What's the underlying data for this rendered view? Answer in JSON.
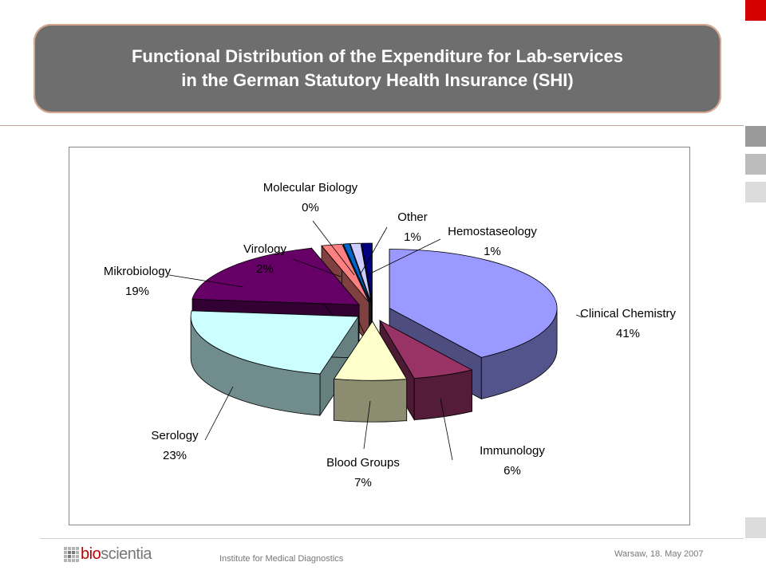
{
  "header": {
    "title_line1": "Functional Distribution of the Expenditure for Lab-services",
    "title_line2": "in the German Statutory Health Insurance (SHI)"
  },
  "footer": {
    "logo_bio": "bio",
    "logo_rest": "scientia",
    "institute": "Institute for Medical Diagnostics",
    "place_date": "Warsaw, 18. May 2007"
  },
  "colors": {
    "accent_red": "#d40000",
    "side_gray1": "#9a9a9a",
    "side_gray2": "#bcbcbc",
    "side_gray3": "#dcdcdc",
    "title_bg": "#6e6e6e"
  },
  "chart_data": {
    "type": "pie",
    "style": "3d-exploded",
    "title": "",
    "slices": [
      {
        "label": "Clinical Chemistry",
        "value": 41,
        "display": "41%",
        "color": "#9999ff"
      },
      {
        "label": "Immunology",
        "value": 6,
        "display": "6%",
        "color": "#993366"
      },
      {
        "label": "Blood Groups",
        "value": 7,
        "display": "7%",
        "color": "#ffffcc"
      },
      {
        "label": "Serology",
        "value": 23,
        "display": "23%",
        "color": "#ccffff"
      },
      {
        "label": "Mikrobiology",
        "value": 19,
        "display": "19%",
        "color": "#660066"
      },
      {
        "label": "Virology",
        "value": 2,
        "display": "2%",
        "color": "#ff8080"
      },
      {
        "label": "Molecular Biology",
        "value": 0,
        "display": "0%",
        "color": "#0066cc"
      },
      {
        "label": "Other",
        "value": 1,
        "display": "1%",
        "color": "#ccccff"
      },
      {
        "label": "Hemostaseology",
        "value": 1,
        "display": "1%",
        "color": "#000080"
      }
    ]
  }
}
